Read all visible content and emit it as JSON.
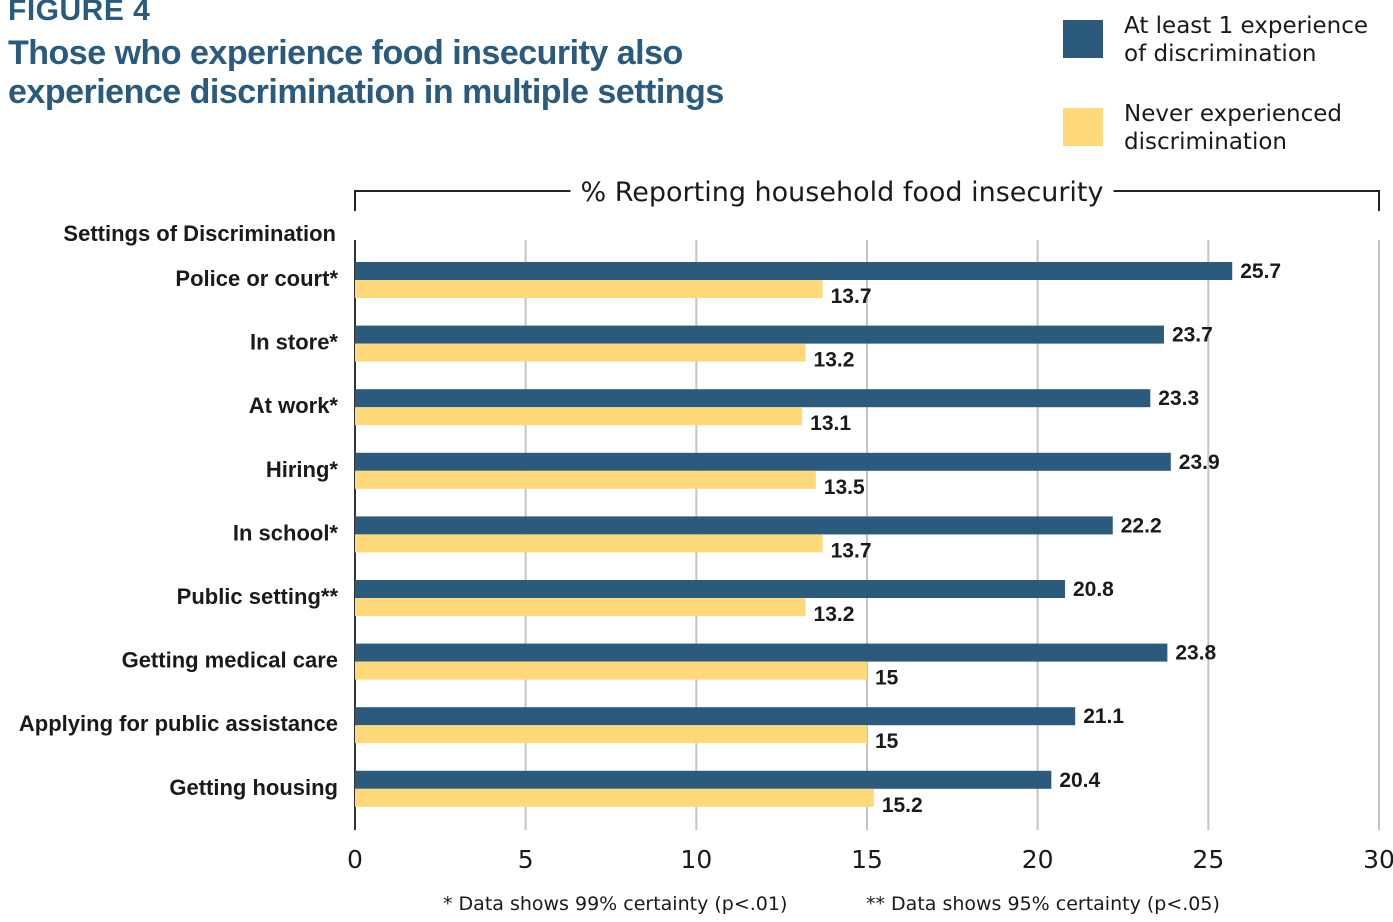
{
  "figure_label": "FIGURE 4",
  "title": "Those who experience food insecurity also experience discrimination in multiple settings",
  "legend": [
    {
      "label": "At least 1 experience of discrimination",
      "color": "#2b5a7c"
    },
    {
      "label": "Never experienced discrimination",
      "color": "#fdd97a"
    }
  ],
  "footnotes": [
    "* Data shows 99% certainty (p<.01)",
    "** Data shows 95% certainty (p<.05)"
  ],
  "chart_data": {
    "type": "bar",
    "orientation": "horizontal",
    "title": "Those who experience food insecurity also experience discrimination in multiple settings",
    "xlabel": "% Reporting household food insecurity",
    "ylabel": "Settings of Discrimination",
    "categories": [
      "Police or court*",
      "In store*",
      "At work*",
      "Hiring*",
      "In school*",
      "Public setting**",
      "Getting medical care",
      "Applying for public assistance",
      "Getting housing"
    ],
    "series": [
      {
        "name": "At least 1 experience of discrimination",
        "color": "#2b5a7c",
        "values": [
          25.7,
          23.7,
          23.3,
          23.9,
          22.2,
          20.8,
          23.8,
          21.1,
          20.4
        ]
      },
      {
        "name": "Never experienced discrimination",
        "color": "#fdd97a",
        "values": [
          13.7,
          13.2,
          13.1,
          13.5,
          13.7,
          13.2,
          15,
          15,
          15.2
        ]
      }
    ],
    "xlim": [
      0,
      30
    ],
    "xticks": [
      0,
      5,
      10,
      15,
      20,
      25,
      30
    ],
    "grid": true,
    "legend_position": "top-right"
  }
}
